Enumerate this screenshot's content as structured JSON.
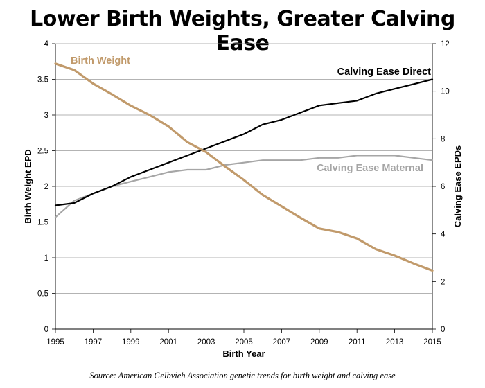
{
  "chart_data": {
    "type": "line",
    "title": "Lower Birth Weights, Greater Calving Ease",
    "xlabel": "Birth Year",
    "ylabel_left": "Birth Weight EPD",
    "ylabel_right": "Calving Ease EPDs",
    "source": "Source: American Gelbvieh Association genetic trends for birth weight and calving ease",
    "x": [
      1995,
      1996,
      1997,
      1998,
      1999,
      2000,
      2001,
      2002,
      2003,
      2004,
      2005,
      2006,
      2007,
      2008,
      2009,
      2010,
      2011,
      2012,
      2013,
      2014,
      2015
    ],
    "x_ticks": [
      "1995",
      "1997",
      "1999",
      "2001",
      "2003",
      "2005",
      "2007",
      "2009",
      "2011",
      "2013",
      "2015"
    ],
    "xlim": [
      1995,
      2015
    ],
    "y_left_ticks": [
      "0",
      "0.5",
      "1",
      "1.5",
      "2",
      "2.5",
      "3",
      "3.5",
      "4"
    ],
    "ylim_left": [
      0,
      4
    ],
    "y_right_ticks": [
      "0",
      "2",
      "4",
      "6",
      "8",
      "10",
      "12"
    ],
    "ylim_right": [
      0,
      12
    ],
    "grid": true,
    "series": [
      {
        "name": "Birth Weight",
        "axis": "left",
        "color": "#c19a6b",
        "values": [
          3.72,
          3.63,
          3.44,
          3.29,
          3.13,
          3.0,
          2.84,
          2.62,
          2.48,
          2.28,
          2.09,
          1.88,
          1.72,
          1.56,
          1.41,
          1.36,
          1.27,
          1.12,
          1.03,
          0.92,
          0.82
        ]
      },
      {
        "name": "Calving Ease Direct",
        "axis": "right",
        "color": "#000000",
        "values": [
          5.2,
          5.3,
          5.7,
          6.0,
          6.4,
          6.7,
          7.0,
          7.3,
          7.6,
          7.9,
          8.2,
          8.6,
          8.8,
          9.1,
          9.4,
          9.5,
          9.6,
          9.9,
          10.1,
          10.3,
          10.5
        ]
      },
      {
        "name": "Calving Ease Maternal",
        "axis": "right",
        "color": "#a6a6a6",
        "values": [
          4.7,
          5.4,
          5.7,
          6.0,
          6.2,
          6.4,
          6.6,
          6.7,
          6.7,
          6.9,
          7.0,
          7.1,
          7.1,
          7.1,
          7.2,
          7.2,
          7.3,
          7.3,
          7.3,
          7.2,
          7.1
        ]
      }
    ]
  }
}
